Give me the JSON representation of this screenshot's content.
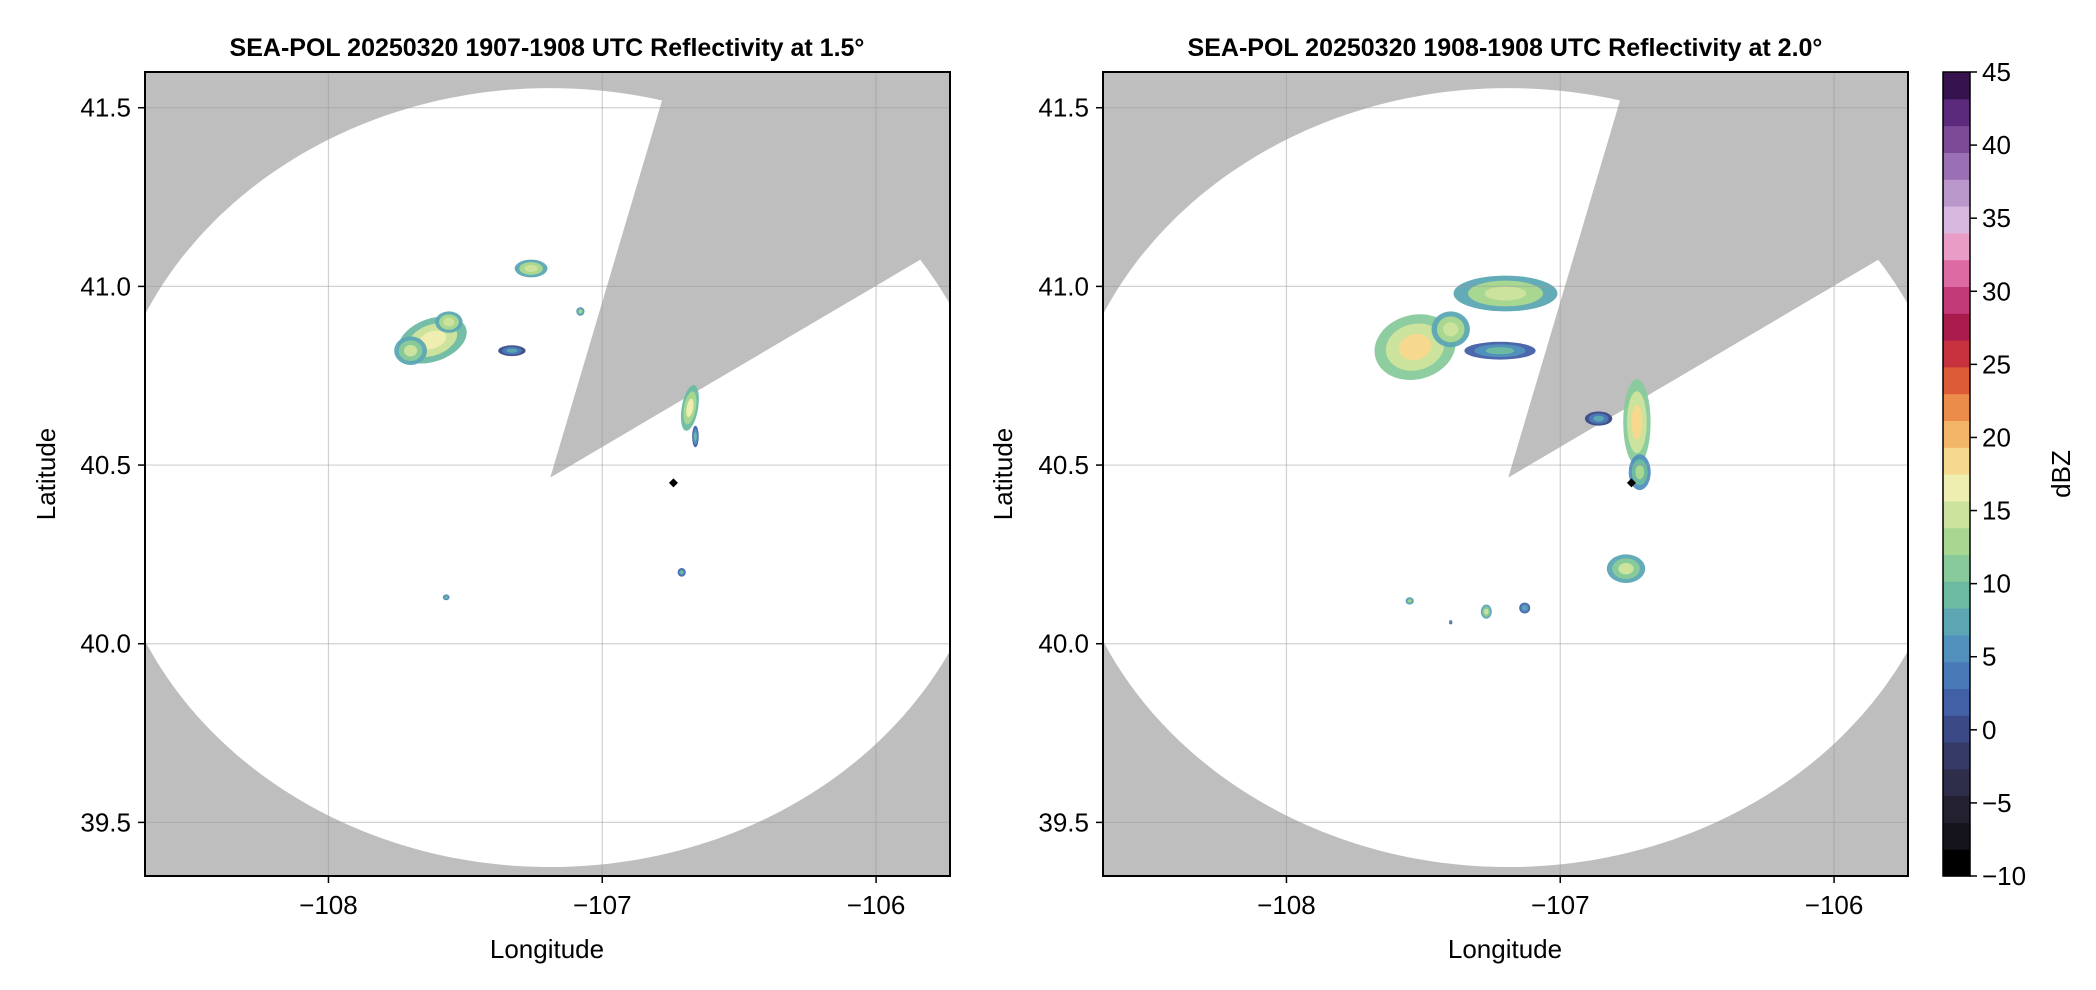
{
  "chart_data": {
    "type": "heatmap",
    "units": "dBZ",
    "panels": [
      {
        "title": "SEA-POL 20250320 1907-1908 UTC Reflectivity at 1.5°",
        "xlabel": "Longitude",
        "ylabel": "Latitude",
        "xlim": [
          -108.67,
          -105.73
        ],
        "ylim": [
          39.35,
          41.6
        ],
        "xticks": [
          -108,
          -107,
          -106
        ],
        "yticks": [
          39.5,
          40.0,
          40.5,
          41.0,
          41.5
        ],
        "grid": true,
        "radar_site": {
          "lon": -106.74,
          "lat": 40.45
        },
        "coverage": {
          "center_lon": -107.19,
          "center_lat": 40.465,
          "radius_lon": 1.63,
          "radius_lat": 1.09,
          "blocked_sectors": [
            {
              "from_az": 14.5,
              "to_az": 56.0
            }
          ]
        },
        "echoes": [
          {
            "lon": -107.62,
            "lat": 40.85,
            "dlon": 0.13,
            "dlat": 0.06,
            "dbz": 15,
            "rot": -20
          },
          {
            "lon": -107.7,
            "lat": 40.82,
            "dlon": 0.06,
            "dlat": 0.04,
            "dbz": 12,
            "rot": 0
          },
          {
            "lon": -107.56,
            "lat": 40.9,
            "dlon": 0.05,
            "dlat": 0.03,
            "dbz": 13,
            "rot": 0
          },
          {
            "lon": -107.33,
            "lat": 40.82,
            "dlon": 0.05,
            "dlat": 0.015,
            "dbz": 5,
            "rot": 0
          },
          {
            "lon": -107.26,
            "lat": 41.05,
            "dlon": 0.06,
            "dlat": 0.025,
            "dbz": 13,
            "rot": 0
          },
          {
            "lon": -107.08,
            "lat": 40.93,
            "dlon": 0.015,
            "dlat": 0.012,
            "dbz": 11,
            "rot": 0
          },
          {
            "lon": -106.68,
            "lat": 40.66,
            "dlon": 0.03,
            "dlat": 0.065,
            "dbz": 14,
            "rot": 10
          },
          {
            "lon": -106.66,
            "lat": 40.58,
            "dlon": 0.012,
            "dlat": 0.03,
            "dbz": 7,
            "rot": 0
          },
          {
            "lon": -106.71,
            "lat": 40.2,
            "dlon": 0.015,
            "dlat": 0.012,
            "dbz": 7,
            "rot": 0
          },
          {
            "lon": -107.57,
            "lat": 40.13,
            "dlon": 0.012,
            "dlat": 0.008,
            "dbz": 8,
            "rot": 0
          }
        ]
      },
      {
        "title": "SEA-POL 20250320 1908-1908 UTC Reflectivity at 2.0°",
        "xlabel": "Longitude",
        "ylabel": "Latitude",
        "xlim": [
          -108.67,
          -105.73
        ],
        "ylim": [
          39.35,
          41.6
        ],
        "xticks": [
          -108,
          -107,
          -106
        ],
        "yticks": [
          39.5,
          40.0,
          40.5,
          41.0,
          41.5
        ],
        "grid": true,
        "radar_site": {
          "lon": -106.74,
          "lat": 40.45
        },
        "coverage": {
          "center_lon": -107.19,
          "center_lat": 40.465,
          "radius_lon": 1.63,
          "radius_lat": 1.09,
          "blocked_sectors": [
            {
              "from_az": 14.5,
              "to_az": 56.0
            }
          ]
        },
        "echoes": [
          {
            "lon": -107.53,
            "lat": 40.83,
            "dlon": 0.15,
            "dlat": 0.09,
            "dbz": 16,
            "rot": -15
          },
          {
            "lon": -107.4,
            "lat": 40.88,
            "dlon": 0.07,
            "dlat": 0.05,
            "dbz": 13,
            "rot": 0
          },
          {
            "lon": -107.22,
            "lat": 40.82,
            "dlon": 0.13,
            "dlat": 0.025,
            "dbz": 7,
            "rot": 0
          },
          {
            "lon": -107.2,
            "lat": 40.98,
            "dlon": 0.19,
            "dlat": 0.05,
            "dbz": 13,
            "rot": 0
          },
          {
            "lon": -106.72,
            "lat": 40.62,
            "dlon": 0.05,
            "dlat": 0.12,
            "dbz": 16,
            "rot": 0
          },
          {
            "lon": -106.86,
            "lat": 40.63,
            "dlon": 0.05,
            "dlat": 0.02,
            "dbz": 5,
            "rot": 0
          },
          {
            "lon": -106.71,
            "lat": 40.48,
            "dlon": 0.04,
            "dlat": 0.05,
            "dbz": 10,
            "rot": 0
          },
          {
            "lon": -106.76,
            "lat": 40.21,
            "dlon": 0.07,
            "dlat": 0.04,
            "dbz": 12,
            "rot": 0
          },
          {
            "lon": -107.55,
            "lat": 40.12,
            "dlon": 0.015,
            "dlat": 0.01,
            "dbz": 10,
            "rot": 0
          },
          {
            "lon": -107.27,
            "lat": 40.09,
            "dlon": 0.02,
            "dlat": 0.02,
            "dbz": 12,
            "rot": 0
          },
          {
            "lon": -107.13,
            "lat": 40.1,
            "dlon": 0.02,
            "dlat": 0.015,
            "dbz": 6,
            "rot": 0
          },
          {
            "lon": -107.4,
            "lat": 40.06,
            "dlon": 0.006,
            "dlat": 0.006,
            "dbz": 5,
            "rot": 0
          }
        ]
      }
    ],
    "colorbar": {
      "label": "dBZ",
      "min": -10,
      "max": 45,
      "ticks": [
        -10,
        -5,
        0,
        5,
        10,
        15,
        20,
        25,
        30,
        35,
        40,
        45
      ],
      "tick_labels": [
        "−10",
        "−5",
        "0",
        "5",
        "10",
        "15",
        "20",
        "25",
        "30",
        "35",
        "40",
        "45"
      ],
      "colors": [
        "#000000",
        "#15131c",
        "#232130",
        "#2e2e4a",
        "#363a66",
        "#3b4a86",
        "#4260a6",
        "#4a79b8",
        "#5190bd",
        "#5ca6b4",
        "#6dbaa3",
        "#88ca9a",
        "#a8d792",
        "#cbe39c",
        "#eeeeb0",
        "#f6d98e",
        "#f3b567",
        "#ec8c4a",
        "#dd5b37",
        "#c7323e",
        "#a81b4c",
        "#c33a79",
        "#dc6aa3",
        "#e99cc5",
        "#d9b8df",
        "#bb98cc",
        "#9b6fb3",
        "#7d4a98",
        "#5b2a7c",
        "#36124f"
      ]
    }
  },
  "colors": {
    "no_data": "#bebebe",
    "coverage": "#ffffff",
    "grid": "#cfcfcf",
    "radar_marker": "#000000"
  }
}
